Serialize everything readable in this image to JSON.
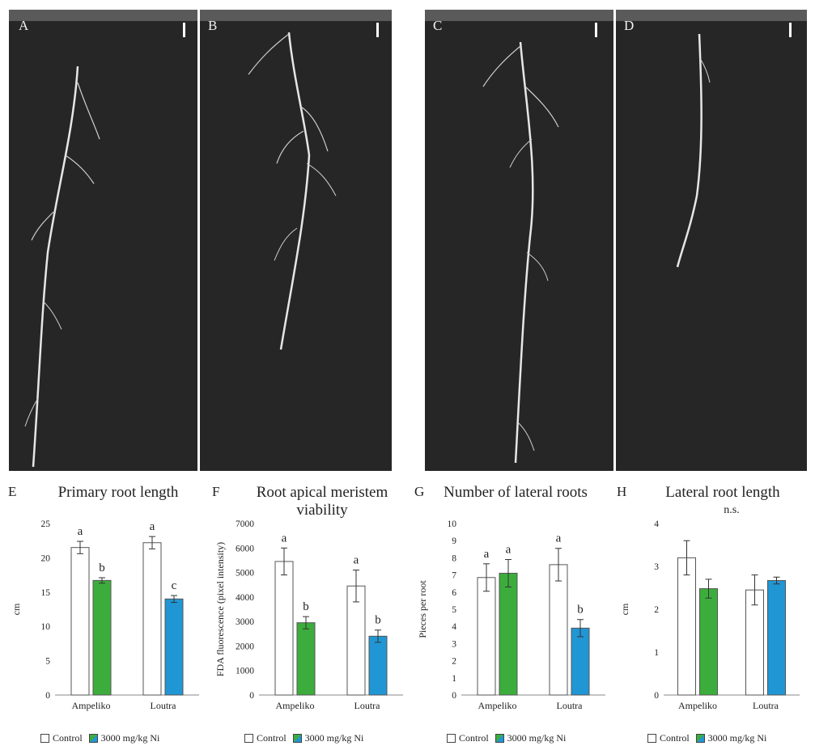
{
  "photos": [
    {
      "letter": "A"
    },
    {
      "letter": "B"
    },
    {
      "letter": "C"
    },
    {
      "letter": "D"
    }
  ],
  "colors": {
    "control": "#ffffff",
    "ni_ampeliko": "#3cad3c",
    "ni_loutra": "#2196d4",
    "photo_bg": "#262626",
    "root": "#e6e6e6"
  },
  "legend": {
    "control": "Control",
    "treatment": "3000 mg/kg Ni"
  },
  "chart_data": [
    {
      "letter": "E",
      "title": "Primary root length",
      "type": "bar",
      "categories": [
        "Ampeliko",
        "Loutra"
      ],
      "ylabel": "cm",
      "ylim": [
        0,
        25
      ],
      "yticks": [
        0,
        5,
        10,
        15,
        20,
        25
      ],
      "series": [
        {
          "name": "Control",
          "values": [
            21.5,
            22.2
          ],
          "errors": [
            0.9,
            0.9
          ]
        },
        {
          "name": "3000 mg/kg Ni",
          "values": [
            16.7,
            14.0
          ],
          "errors": [
            0.4,
            0.5
          ]
        }
      ],
      "letters": [
        [
          "a",
          "b"
        ],
        [
          "a",
          "c"
        ]
      ],
      "ns_label": ""
    },
    {
      "letter": "F",
      "title": "Root apical meristem viability",
      "type": "bar",
      "categories": [
        "Ampeliko",
        "Loutra"
      ],
      "ylabel": "FDA fluorescence (pixel intensity)",
      "ylim": [
        0,
        7000
      ],
      "yticks": [
        0,
        1000,
        2000,
        3000,
        4000,
        5000,
        6000,
        7000
      ],
      "series": [
        {
          "name": "Control",
          "values": [
            5450,
            4450
          ],
          "errors": [
            550,
            650
          ]
        },
        {
          "name": "3000 mg/kg Ni",
          "values": [
            2950,
            2400
          ],
          "errors": [
            250,
            250
          ]
        }
      ],
      "letters": [
        [
          "a",
          "b"
        ],
        [
          "a",
          "b"
        ]
      ],
      "ns_label": ""
    },
    {
      "letter": "G",
      "title": "Number of lateral roots",
      "type": "bar",
      "categories": [
        "Ampeliko",
        "Loutra"
      ],
      "ylabel": "Pieces per root",
      "ylim": [
        0,
        10
      ],
      "yticks": [
        0,
        1,
        2,
        3,
        4,
        5,
        6,
        7,
        8,
        9,
        10
      ],
      "series": [
        {
          "name": "Control",
          "values": [
            6.85,
            7.6
          ],
          "errors": [
            0.8,
            0.95
          ]
        },
        {
          "name": "3000 mg/kg Ni",
          "values": [
            7.1,
            3.9
          ],
          "errors": [
            0.8,
            0.5
          ]
        }
      ],
      "letters": [
        [
          "a",
          "a"
        ],
        [
          "a",
          "b"
        ]
      ],
      "ns_label": ""
    },
    {
      "letter": "H",
      "title": "Lateral root length",
      "type": "bar",
      "categories": [
        "Ampeliko",
        "Loutra"
      ],
      "ylabel": "cm",
      "ylim": [
        0,
        4
      ],
      "yticks": [
        0,
        1,
        2,
        3,
        4
      ],
      "series": [
        {
          "name": "Control",
          "values": [
            3.2,
            2.45
          ],
          "errors": [
            0.4,
            0.35
          ]
        },
        {
          "name": "3000 mg/kg Ni",
          "values": [
            2.48,
            2.67
          ],
          "errors": [
            0.22,
            0.08
          ]
        }
      ],
      "letters": [
        [
          "",
          ""
        ],
        [
          "",
          ""
        ]
      ],
      "ns_label": "n.s."
    }
  ]
}
